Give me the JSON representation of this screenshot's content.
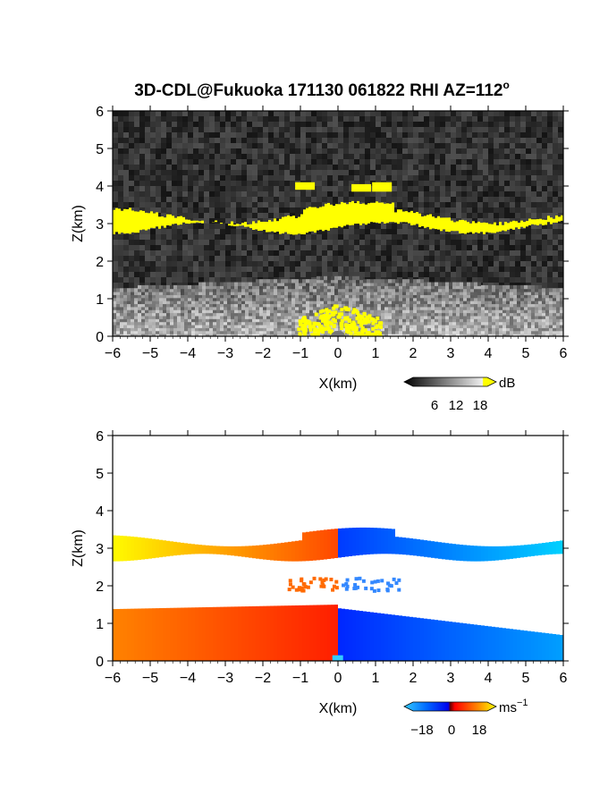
{
  "title": "3D-CDL@Fukuoka 171130 061822 RHI AZ=112",
  "title_sup": "o",
  "colors": {
    "cloud_yellow": "#ffff00",
    "background_noise_gray": "#333333",
    "velocity_positive": "#ff2a00",
    "velocity_negative": "#0033ff",
    "velocity_far_negative": "#33ccff",
    "velocity_far_positive": "#ffee00"
  },
  "chart_data": [
    {
      "type": "heatmap",
      "name": "backscatter",
      "xlabel": "X(km)",
      "ylabel": "Z(km)",
      "xlim": [
        -6,
        6
      ],
      "ylim": [
        0,
        6
      ],
      "xticks": [
        -6,
        -5,
        -4,
        -3,
        -2,
        -1,
        0,
        1,
        2,
        3,
        4,
        5,
        6
      ],
      "yticks": [
        0,
        1,
        2,
        3,
        4,
        5,
        6
      ],
      "colorbar": {
        "unit": "dB",
        "ticks": [
          6,
          12,
          18
        ]
      },
      "layers": [
        {
          "feature": "cloud layer (high, >18 dB)",
          "z_base_km": 2.9,
          "z_top_km": 3.3,
          "x_range_km": [
            -6,
            6
          ]
        },
        {
          "feature": "cloud turrets",
          "x_range_km": [
            -1,
            1.5
          ],
          "z_top_km": 4.1
        },
        {
          "feature": "boundary layer (weak echo)",
          "z_base_km": 0,
          "z_top_km": 1.6,
          "x_range_km": [
            -6,
            6
          ]
        },
        {
          "feature": "near-range strong echo",
          "x_range_km": [
            -1,
            1
          ],
          "z_top_km": 1.0
        }
      ]
    },
    {
      "type": "heatmap",
      "name": "doppler_velocity",
      "xlabel": "X(km)",
      "ylabel": "Z(km)",
      "xlim": [
        -6,
        6
      ],
      "ylim": [
        0,
        6
      ],
      "xticks": [
        -6,
        -5,
        -4,
        -3,
        -2,
        -1,
        0,
        1,
        2,
        3,
        4,
        5,
        6
      ],
      "yticks": [
        0,
        1,
        2,
        3,
        4,
        5,
        6
      ],
      "colorbar": {
        "unit": "ms",
        "unit_sup": "−1",
        "ticks": [
          -18,
          0,
          18
        ]
      },
      "regions": [
        {
          "feature": "upper layer west",
          "x_range_km": [
            -6,
            0
          ],
          "z_range_km": [
            2.8,
            3.4
          ],
          "velocity_ms": [
            2,
            18
          ]
        },
        {
          "feature": "upper layer east",
          "x_range_km": [
            0,
            6
          ],
          "z_range_km": [
            2.6,
            3.5
          ],
          "velocity_ms": [
            -18,
            -2
          ]
        },
        {
          "feature": "lower layer west",
          "x_range_km": [
            -6,
            0
          ],
          "z_range_km": [
            0,
            1.6
          ],
          "velocity_ms": [
            2,
            12
          ]
        },
        {
          "feature": "lower layer east",
          "x_range_km": [
            0,
            6
          ],
          "z_range_km": [
            0,
            1.6
          ],
          "velocity_ms": [
            -12,
            -2
          ]
        }
      ]
    }
  ],
  "tick_labels_x": [
    "−6",
    "−5",
    "−4",
    "−3",
    "−2",
    "−1",
    "0",
    "1",
    "2",
    "3",
    "4",
    "5",
    "6"
  ],
  "tick_labels_y": [
    "0",
    "1",
    "2",
    "3",
    "4",
    "5",
    "6"
  ],
  "colorbar1": {
    "labels": [
      "6",
      "12",
      "18"
    ],
    "unit": "dB"
  },
  "colorbar2": {
    "labels": [
      "−18",
      "0",
      "18"
    ],
    "unit": "ms",
    "unit_sup": "−1"
  }
}
